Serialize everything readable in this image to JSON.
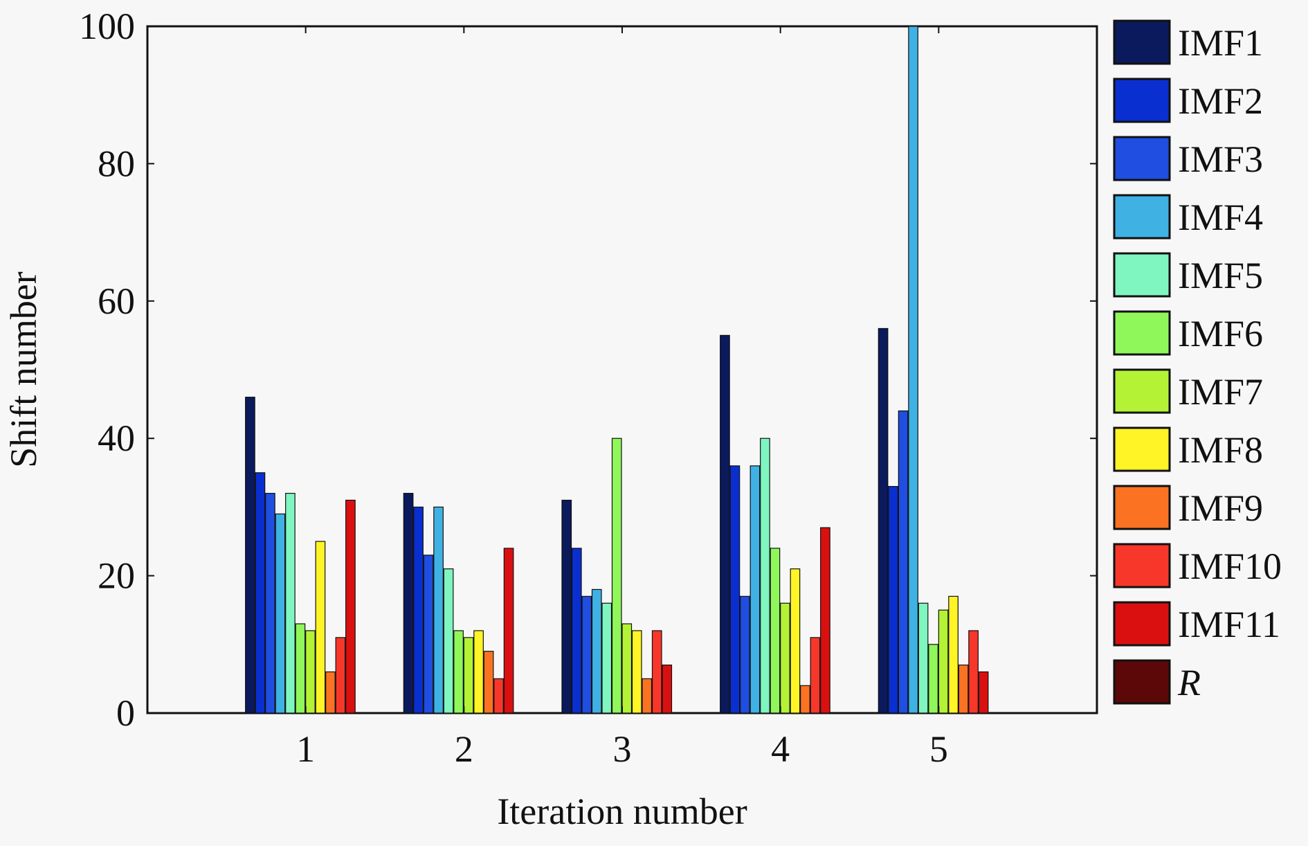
{
  "chart_data": {
    "type": "bar",
    "title": "",
    "xlabel": "Iteration number",
    "ylabel": "Shift number",
    "categories": [
      "1",
      "2",
      "3",
      "4",
      "5"
    ],
    "ylim": [
      0,
      100
    ],
    "yticks": [
      "0",
      "20",
      "40",
      "60",
      "80",
      "100"
    ],
    "grid": false,
    "legend_position": "right",
    "series": [
      {
        "name": "IMF1",
        "color": "#0a1a5c",
        "values": [
          46,
          32,
          31,
          55,
          56
        ]
      },
      {
        "name": "IMF2",
        "color": "#0a2fd0",
        "values": [
          35,
          30,
          24,
          36,
          33
        ]
      },
      {
        "name": "IMF3",
        "color": "#1f4ee0",
        "values": [
          32,
          23,
          17,
          17,
          44
        ]
      },
      {
        "name": "IMF4",
        "color": "#3fb1e3",
        "values": [
          29,
          30,
          18,
          36,
          100
        ]
      },
      {
        "name": "IMF5",
        "color": "#7ff5c0",
        "values": [
          32,
          21,
          16,
          40,
          16
        ]
      },
      {
        "name": "IMF6",
        "color": "#8ff75a",
        "values": [
          13,
          12,
          40,
          24,
          10
        ]
      },
      {
        "name": "IMF7",
        "color": "#b4f236",
        "values": [
          12,
          11,
          13,
          16,
          15
        ]
      },
      {
        "name": "IMF8",
        "color": "#fff426",
        "values": [
          25,
          12,
          12,
          21,
          17
        ]
      },
      {
        "name": "IMF9",
        "color": "#fb7322",
        "values": [
          6,
          9,
          5,
          4,
          7
        ]
      },
      {
        "name": "IMF10",
        "color": "#f7372a",
        "values": [
          11,
          5,
          12,
          11,
          12
        ]
      },
      {
        "name": "IMF11",
        "color": "#da1010",
        "values": [
          31,
          24,
          7,
          27,
          6
        ]
      },
      {
        "name": "R",
        "color": "#5c0808",
        "italic": true,
        "values": [
          0,
          0,
          0,
          0,
          0
        ]
      }
    ]
  }
}
